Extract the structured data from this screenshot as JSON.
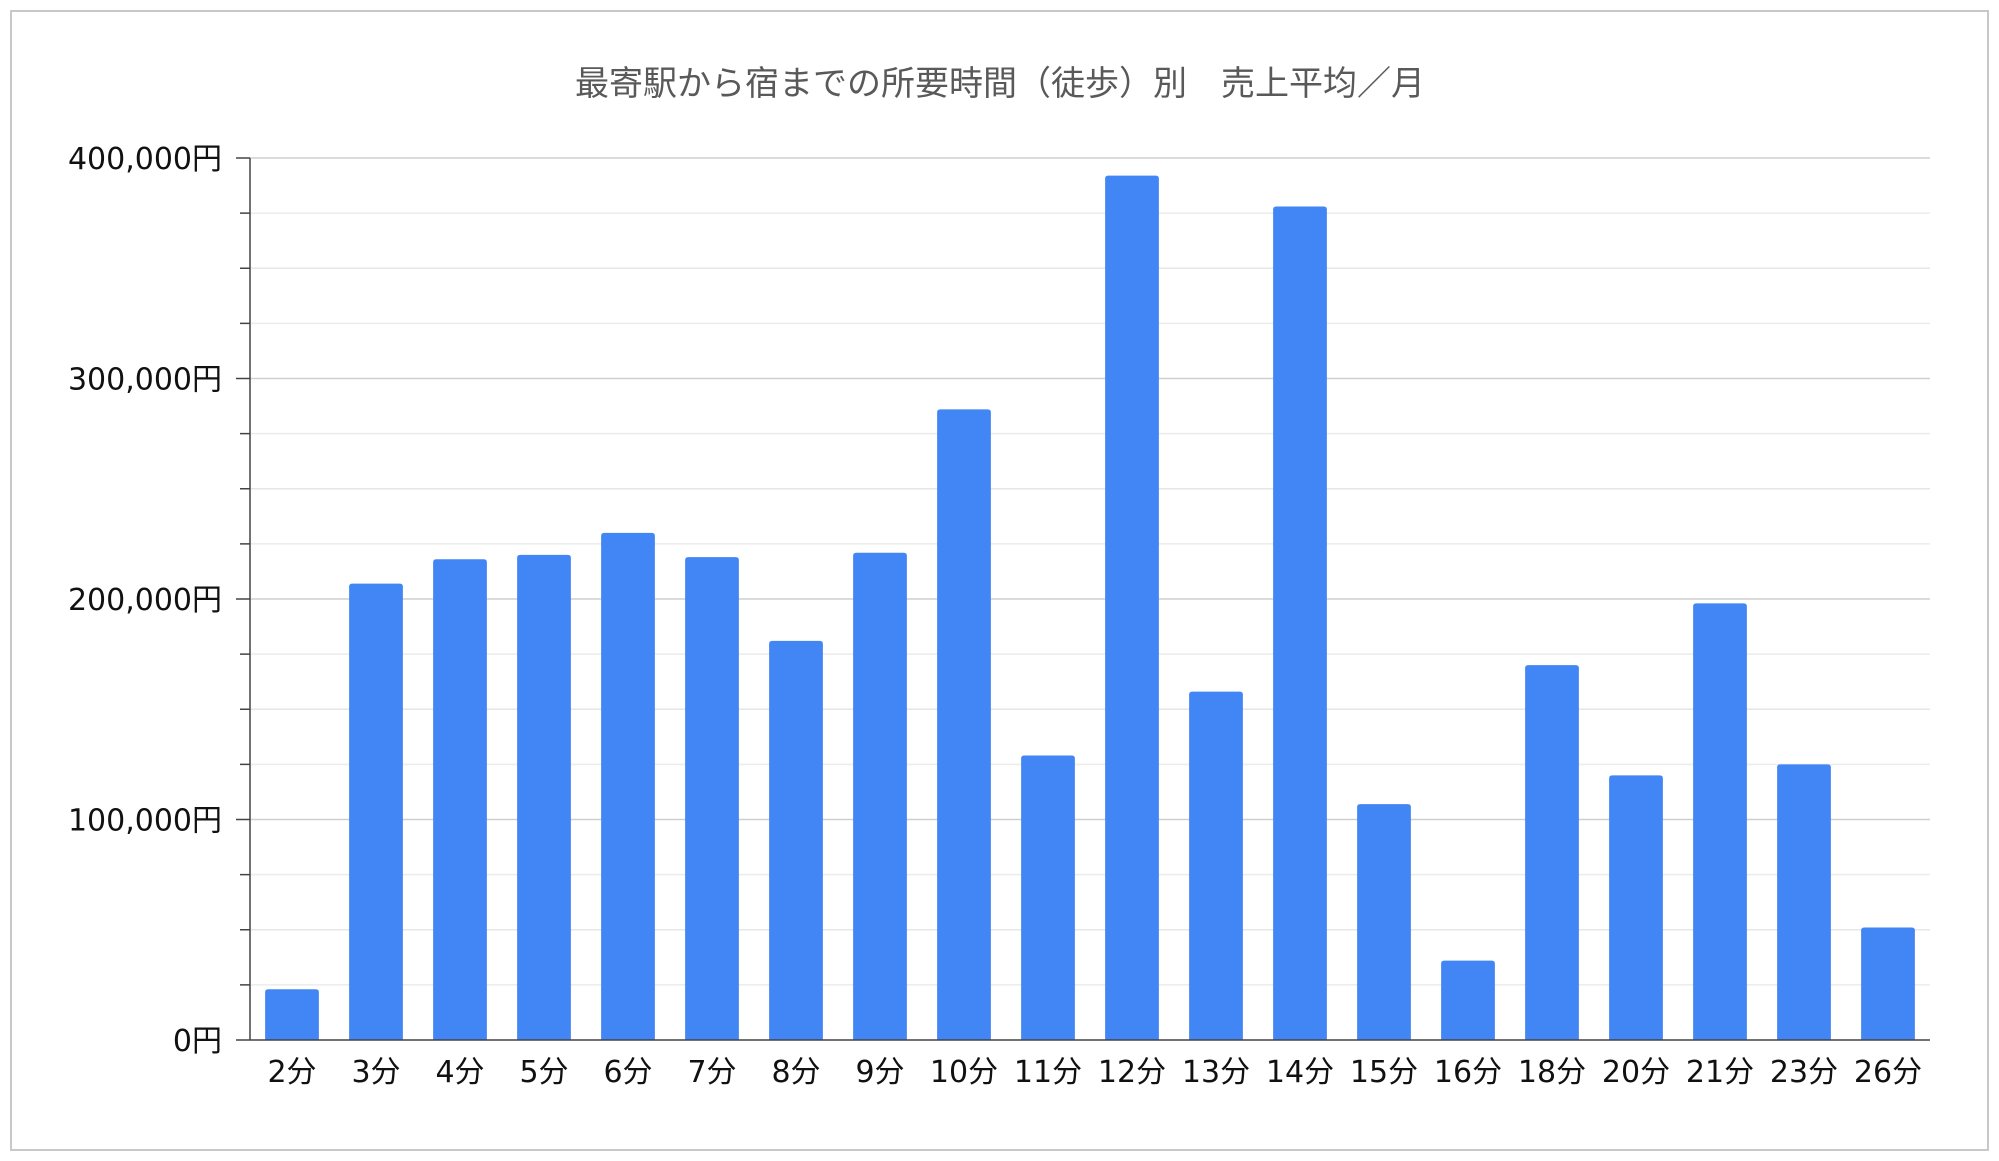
{
  "chart_data": {
    "type": "bar",
    "title": "最寄駅から宿までの所要時間（徒歩）別　売上平均／月",
    "xlabel": "",
    "ylabel": "",
    "categories": [
      "2分",
      "3分",
      "4分",
      "5分",
      "6分",
      "7分",
      "8分",
      "9分",
      "10分",
      "11分",
      "12分",
      "13分",
      "14分",
      "15分",
      "16分",
      "18分",
      "20分",
      "21分",
      "23分",
      "26分"
    ],
    "values": [
      23000,
      207000,
      218000,
      220000,
      230000,
      219000,
      181000,
      221000,
      286000,
      129000,
      392000,
      158000,
      378000,
      107000,
      36000,
      170000,
      120000,
      198000,
      125000,
      51000
    ],
    "ylim": [
      0,
      400000
    ],
    "yticks": [
      0,
      100000,
      200000,
      300000,
      400000
    ],
    "ytick_labels": [
      "0円",
      "100,000円",
      "200,000円",
      "300,000円",
      "400,000円"
    ],
    "grid": true,
    "bar_color": "#4285f4"
  }
}
